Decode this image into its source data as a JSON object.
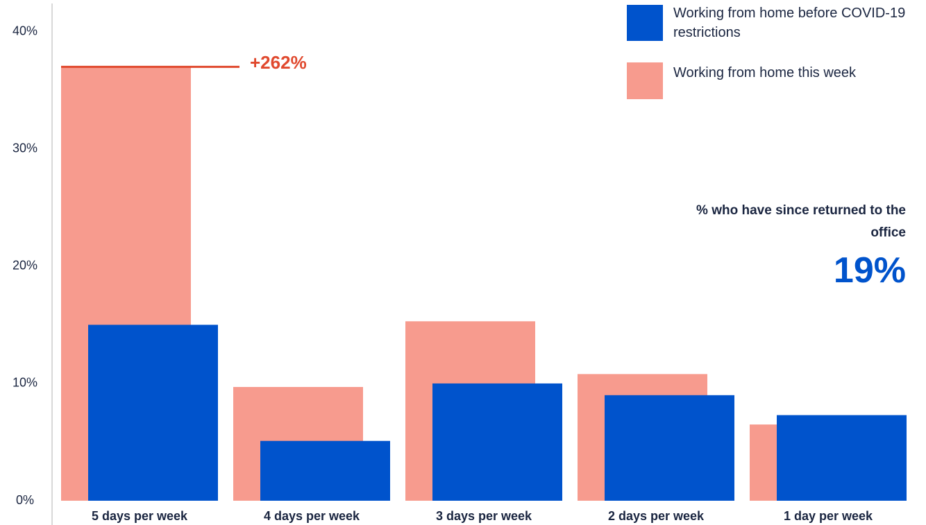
{
  "chart_data": {
    "type": "bar",
    "categories": [
      "5 days per week",
      "4 days per week",
      "3 days per week",
      "2 days per week",
      "1 day per week"
    ],
    "series": [
      {
        "name": "Working from home before COVID-19 restrictions",
        "color": "#0053cc",
        "values": [
          15,
          5.1,
          10,
          9,
          7.3
        ]
      },
      {
        "name": "Working from home this week",
        "color": "#f79b8e",
        "values": [
          37,
          9.7,
          15.3,
          10.8,
          6.5
        ]
      }
    ],
    "ylim": [
      0,
      42.4
    ],
    "yticks": [
      {
        "value": 0,
        "label": "0%"
      },
      {
        "value": 10,
        "label": "10%"
      },
      {
        "value": 20,
        "label": "20%"
      },
      {
        "value": 30,
        "label": "30%"
      },
      {
        "value": 40,
        "label": "40%"
      }
    ],
    "annotation": "+262%",
    "callout": {
      "title": "% who have since returned to the office",
      "value": "19%"
    }
  }
}
